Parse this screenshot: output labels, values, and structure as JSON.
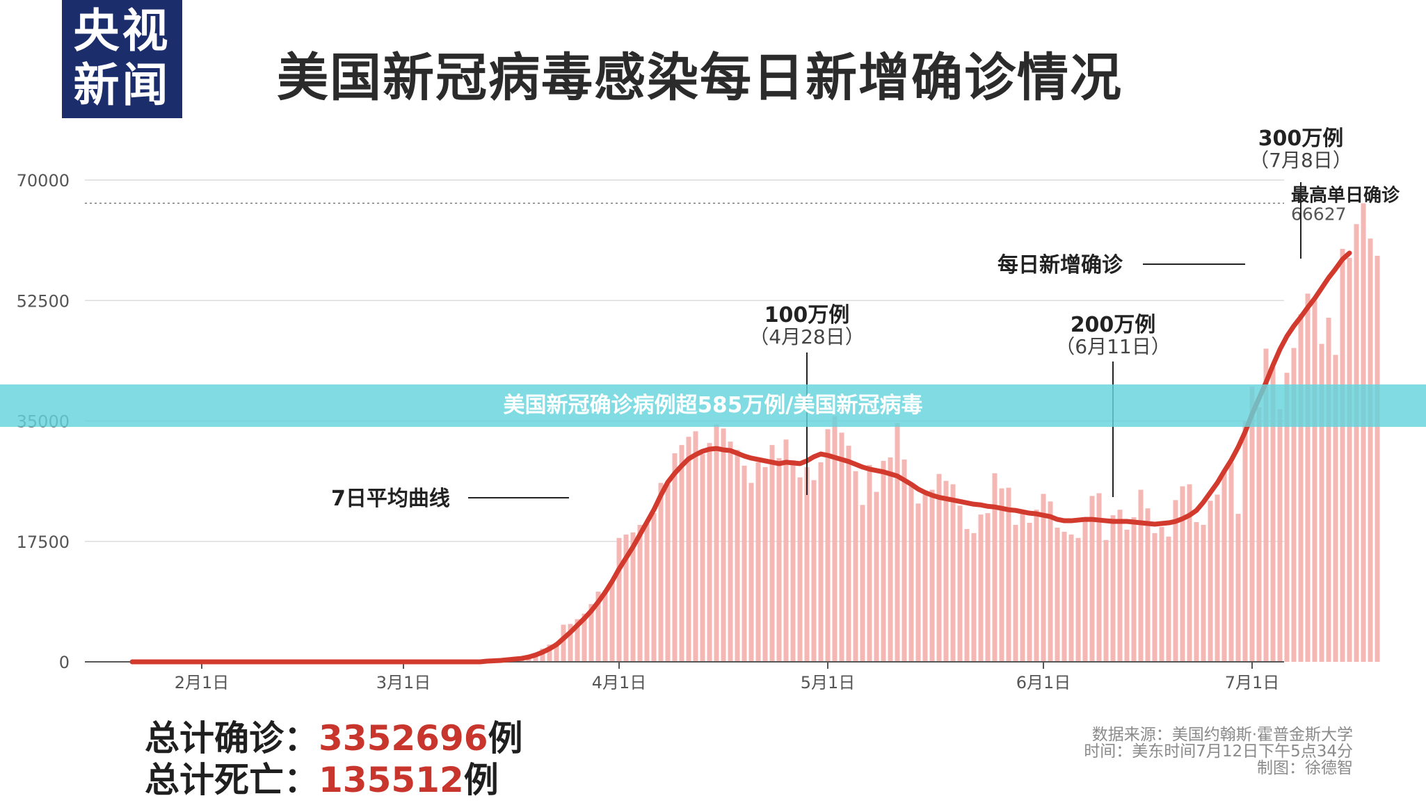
{
  "logo": {
    "line1": "央视",
    "line2": "新闻"
  },
  "title": "美国新冠病毒感染每日新增确诊情况",
  "banner": "美国新冠确诊病例超585万例/美国新冠病毒",
  "colors": {
    "bar": "#f5b7b4",
    "avg_line": "#d23a2e",
    "accent": "#c8352c",
    "logo_bg": "#1c2d6b",
    "banner": "#64d4dc"
  },
  "totals": {
    "cases_label": "总计确诊：",
    "cases_value": "3352696",
    "cases_unit": "例",
    "deaths_label": "总计死亡：",
    "deaths_value": "135512",
    "deaths_unit": "例"
  },
  "source": {
    "line1": "数据来源：美国约翰斯·霍普金斯大学",
    "line2": "时间：美东时间7月12日下午5点34分",
    "line3": "制图：徐德智"
  },
  "chart_data": {
    "type": "bar",
    "title": "美国新冠病毒感染每日新增确诊情况",
    "x_start": "1月22日",
    "x_end": "7月11日",
    "x_tick_labels": [
      "2月1日",
      "3月1日",
      "4月1日",
      "5月1日",
      "6月1日",
      "7月1日"
    ],
    "y_ticks": [
      0,
      17500,
      35000,
      52500,
      70000
    ],
    "ylim": [
      0,
      70000
    ],
    "grid": true,
    "series": [
      {
        "name": "每日新增确诊",
        "type": "bar",
        "values": [
          0,
          0,
          0,
          0,
          0,
          0,
          0,
          0,
          0,
          0,
          0,
          0,
          0,
          0,
          0,
          0,
          0,
          0,
          0,
          0,
          0,
          0,
          0,
          0,
          0,
          0,
          0,
          0,
          0,
          0,
          0,
          0,
          0,
          0,
          0,
          0,
          0,
          0,
          0,
          0,
          0,
          0,
          0,
          0,
          0,
          0,
          0,
          0,
          0,
          0,
          0,
          100,
          200,
          300,
          400,
          500,
          700,
          900,
          1300,
          1900,
          2500,
          2800,
          5400,
          5500,
          6200,
          7000,
          8400,
          10200,
          10400,
          11700,
          18000,
          18500,
          18800,
          19900,
          20100,
          21600,
          26000,
          25800,
          30300,
          31500,
          32700,
          33500,
          30200,
          31800,
          34500,
          33900,
          32000,
          30800,
          28500,
          26000,
          29000,
          28300,
          31500,
          29600,
          32300,
          29300,
          26800,
          28300,
          26400,
          29000,
          33800,
          35700,
          33300,
          31400,
          27700,
          22800,
          28600,
          24700,
          29200,
          29700,
          34700,
          29400,
          25600,
          23000,
          24300,
          25000,
          27300,
          26300,
          25800,
          22700,
          19300,
          18700,
          21400,
          21600,
          27400,
          25200,
          25300,
          19900,
          21500,
          20200,
          22100,
          24400,
          23300,
          19500,
          18900,
          18500,
          18000,
          20900,
          24100,
          24500,
          17700,
          21300,
          22100,
          19200,
          21000,
          25000,
          22300,
          18700,
          19600,
          18200,
          23500,
          25500,
          25800,
          20300,
          19900,
          23400,
          24300,
          27700,
          29000,
          21500,
          35000,
          40000,
          37000,
          45500,
          42800,
          36700,
          42000,
          45600,
          50500,
          53500,
          52500,
          46200,
          50000,
          44600,
          60000,
          58700,
          63600,
          66627,
          61500,
          59000
        ]
      },
      {
        "name": "7日平均曲线",
        "type": "line",
        "values": [
          0,
          0,
          0,
          0,
          0,
          0,
          0,
          0,
          0,
          0,
          0,
          0,
          0,
          0,
          0,
          0,
          0,
          0,
          0,
          0,
          0,
          0,
          0,
          0,
          0,
          0,
          0,
          0,
          0,
          0,
          0,
          0,
          0,
          0,
          0,
          0,
          0,
          0,
          0,
          0,
          0,
          0,
          0,
          0,
          0,
          0,
          0,
          0,
          0,
          0,
          0,
          100,
          150,
          200,
          300,
          400,
          500,
          700,
          1000,
          1400,
          1900,
          2500,
          3400,
          4300,
          5300,
          6300,
          7400,
          8700,
          10100,
          11700,
          13500,
          15100,
          16700,
          18500,
          20300,
          22100,
          24200,
          26100,
          27400,
          28500,
          29500,
          30100,
          30600,
          30900,
          31000,
          30800,
          30700,
          30300,
          29900,
          29600,
          29400,
          29200,
          29000,
          28800,
          29000,
          28900,
          28800,
          29200,
          29800,
          30200,
          30000,
          29700,
          29400,
          29100,
          28700,
          28300,
          28000,
          27800,
          27600,
          27300,
          27000,
          26400,
          25800,
          25100,
          24600,
          24200,
          23900,
          23700,
          23500,
          23300,
          23100,
          22900,
          22800,
          22600,
          22500,
          22300,
          22100,
          22000,
          21800,
          21600,
          21500,
          21300,
          21100,
          20700,
          20500,
          20500,
          20600,
          20700,
          20700,
          20600,
          20500,
          20400,
          20400,
          20400,
          20300,
          20200,
          20100,
          20000,
          20100,
          20200,
          20400,
          20800,
          21300,
          22000,
          23200,
          24600,
          26000,
          27700,
          29300,
          31200,
          33400,
          36000,
          38300,
          40600,
          43100,
          45400,
          47300,
          48800,
          50100,
          51500,
          52800,
          54300,
          55800,
          57100,
          58500,
          59400
        ]
      }
    ],
    "reference_line": {
      "value": 66627,
      "label": "最高单日确诊",
      "value_label": "66627",
      "style": "dotted"
    },
    "annotations": [
      {
        "text": "7日平均曲线",
        "target": "7日平均曲线"
      },
      {
        "text": "每日新增确诊",
        "target": "每日新增确诊"
      },
      {
        "title": "100万例",
        "date": "（4月28日）",
        "x_day_index": 97
      },
      {
        "title": "200万例",
        "date": "（6月11日）",
        "x_day_index": 141
      },
      {
        "title": "300万例",
        "date": "（7月8日）",
        "x_day_index": 168
      }
    ]
  }
}
